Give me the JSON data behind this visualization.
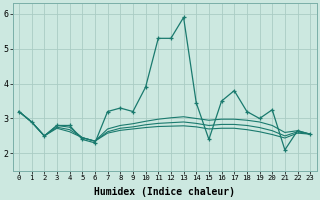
{
  "xlabel": "Humidex (Indice chaleur)",
  "xlim": [
    -0.5,
    23.5
  ],
  "ylim": [
    1.5,
    6.3
  ],
  "yticks": [
    2,
    3,
    4,
    5,
    6
  ],
  "xticks": [
    0,
    1,
    2,
    3,
    4,
    5,
    6,
    7,
    8,
    9,
    10,
    11,
    12,
    13,
    14,
    15,
    16,
    17,
    18,
    19,
    20,
    21,
    22,
    23
  ],
  "bg_color": "#cce8e0",
  "grid_color": "#aaccC4",
  "line_color": "#1a7a6e",
  "series_main": [
    3.2,
    2.9,
    2.5,
    2.8,
    2.8,
    2.4,
    2.3,
    3.2,
    3.3,
    3.2,
    3.9,
    5.3,
    5.3,
    5.9,
    3.45,
    2.4,
    3.5,
    3.8,
    3.2,
    3.0,
    3.25,
    2.1,
    2.65,
    2.55
  ],
  "series_flat": [
    [
      3.2,
      2.9,
      2.5,
      2.8,
      2.75,
      2.45,
      2.35,
      2.7,
      2.8,
      2.85,
      2.92,
      2.98,
      3.02,
      3.05,
      3.0,
      2.95,
      2.98,
      2.98,
      2.95,
      2.9,
      2.8,
      2.6,
      2.65,
      2.55
    ],
    [
      3.2,
      2.9,
      2.5,
      2.75,
      2.68,
      2.45,
      2.35,
      2.62,
      2.72,
      2.76,
      2.82,
      2.86,
      2.88,
      2.9,
      2.86,
      2.8,
      2.83,
      2.83,
      2.8,
      2.74,
      2.65,
      2.5,
      2.62,
      2.55
    ],
    [
      3.2,
      2.9,
      2.5,
      2.72,
      2.62,
      2.45,
      2.35,
      2.58,
      2.66,
      2.7,
      2.74,
      2.77,
      2.78,
      2.79,
      2.76,
      2.7,
      2.72,
      2.72,
      2.68,
      2.62,
      2.54,
      2.44,
      2.58,
      2.55
    ]
  ]
}
